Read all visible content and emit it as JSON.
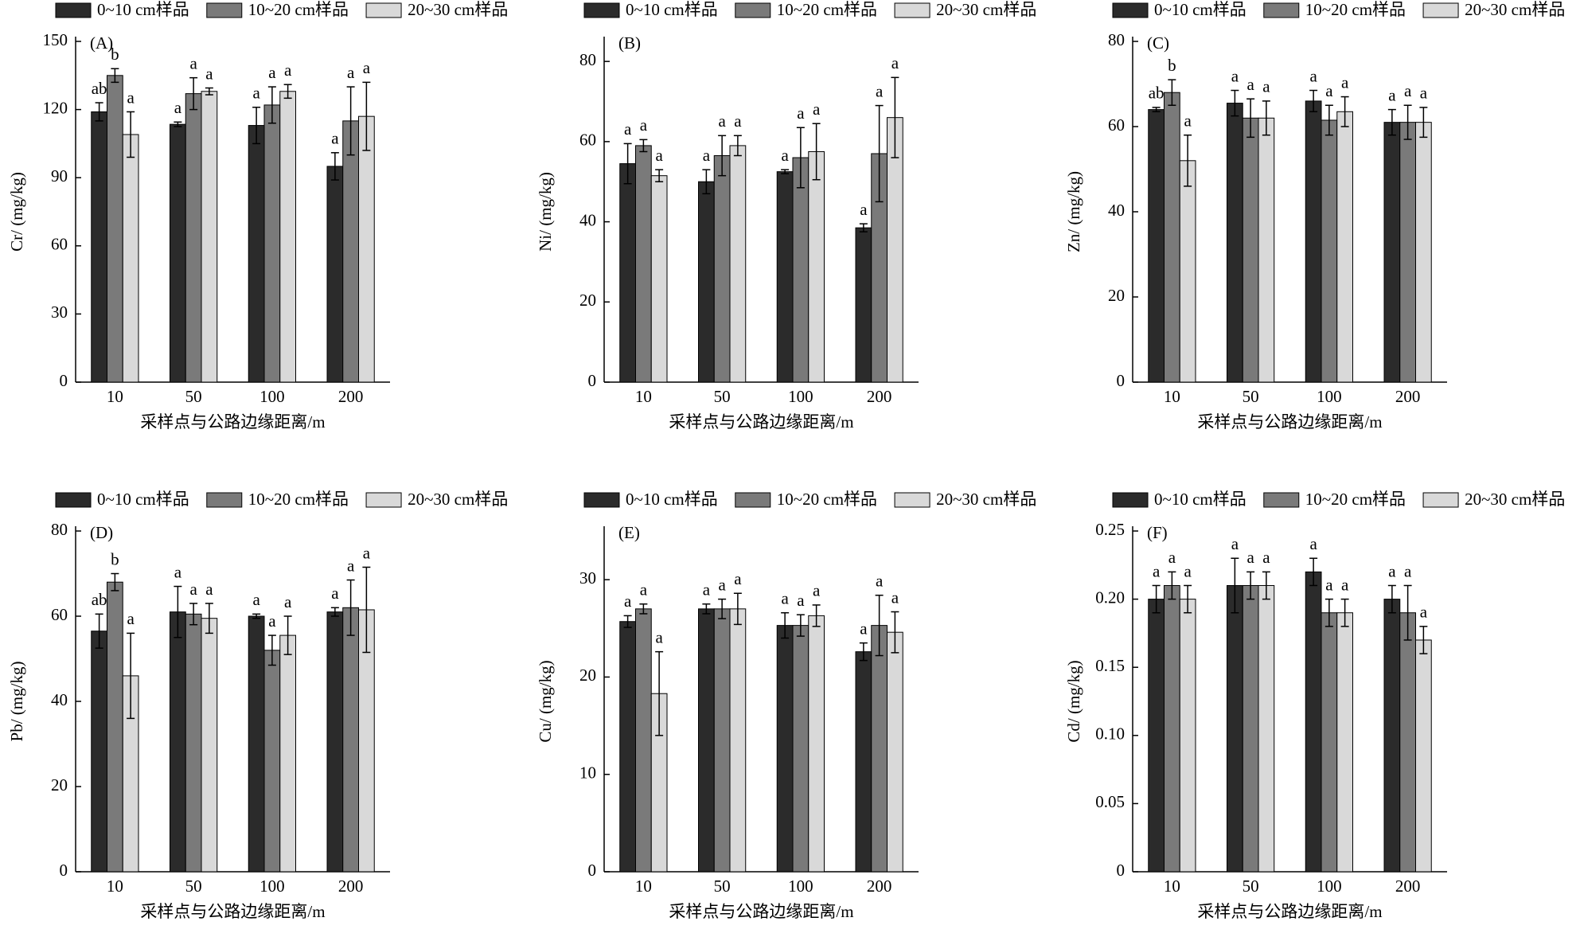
{
  "chart_data": [
    {
      "type": "bar",
      "panel": "(A)",
      "ylabel": "Cr/ (mg/kg)",
      "xlabel": "采样点与公路边缘距离/m",
      "categories": [
        "10",
        "50",
        "100",
        "200"
      ],
      "ylim": [
        0,
        150
      ],
      "yticks": [
        0,
        30,
        60,
        90,
        120,
        150
      ],
      "series": [
        {
          "name": "0~10 cm样品",
          "color": "#2b2b2b",
          "values": [
            119,
            113.5,
            113,
            95
          ],
          "errors": [
            4,
            1,
            8,
            6
          ],
          "letters": [
            "ab",
            "a",
            "a",
            "a"
          ]
        },
        {
          "name": "10~20 cm样品",
          "color": "#7a7a7a",
          "values": [
            135,
            127,
            122,
            115
          ],
          "errors": [
            3,
            7,
            8,
            15
          ],
          "letters": [
            "b",
            "a",
            "a",
            "a"
          ]
        },
        {
          "name": "20~30 cm样品",
          "color": "#d9d9d9",
          "values": [
            109,
            128,
            128,
            117
          ],
          "errors": [
            10,
            1.5,
            3,
            15
          ],
          "letters": [
            "a",
            "a",
            "a",
            "a"
          ]
        }
      ]
    },
    {
      "type": "bar",
      "panel": "(B)",
      "ylabel": "Ni/ (mg/kg)",
      "xlabel": "采样点与公路边缘距离/m",
      "categories": [
        "10",
        "50",
        "100",
        "200"
      ],
      "ylim": [
        0,
        85
      ],
      "yticks": [
        0,
        20,
        40,
        60,
        80
      ],
      "series": [
        {
          "name": "0~10 cm样品",
          "color": "#2b2b2b",
          "values": [
            54.5,
            50,
            52.5,
            38.5
          ],
          "errors": [
            5,
            3,
            0.5,
            1
          ],
          "letters": [
            "a",
            "a",
            "a",
            "a"
          ]
        },
        {
          "name": "10~20 cm样品",
          "color": "#7a7a7a",
          "values": [
            59,
            56.5,
            56,
            57
          ],
          "errors": [
            1.5,
            5,
            7.5,
            12
          ],
          "letters": [
            "a",
            "a",
            "a",
            "a"
          ]
        },
        {
          "name": "20~30 cm样品",
          "color": "#d9d9d9",
          "values": [
            51.5,
            59,
            57.5,
            66
          ],
          "errors": [
            1.5,
            2.5,
            7,
            10
          ],
          "letters": [
            "a",
            "a",
            "a",
            "a"
          ]
        }
      ]
    },
    {
      "type": "bar",
      "panel": "(C)",
      "ylabel": "Zn/ (mg/kg)",
      "xlabel": "采样点与公路边缘距离/m",
      "categories": [
        "10",
        "50",
        "100",
        "200"
      ],
      "ylim": [
        0,
        80
      ],
      "yticks": [
        0,
        20,
        40,
        60,
        80
      ],
      "series": [
        {
          "name": "0~10 cm样品",
          "color": "#2b2b2b",
          "values": [
            64,
            65.5,
            66,
            61
          ],
          "errors": [
            0.5,
            3,
            2.5,
            3
          ],
          "letters": [
            "ab",
            "a",
            "a",
            "a"
          ]
        },
        {
          "name": "10~20 cm样品",
          "color": "#7a7a7a",
          "values": [
            68,
            62,
            61.5,
            61
          ],
          "errors": [
            3,
            4.5,
            3.5,
            4
          ],
          "letters": [
            "b",
            "a",
            "a",
            "a"
          ]
        },
        {
          "name": "20~30 cm样品",
          "color": "#d9d9d9",
          "values": [
            52,
            62,
            63.5,
            61
          ],
          "errors": [
            6,
            4,
            3.5,
            3.5
          ],
          "letters": [
            "a",
            "a",
            "a",
            "a"
          ]
        }
      ]
    },
    {
      "type": "bar",
      "panel": "(D)",
      "ylabel": "Pb/ (mg/kg)",
      "xlabel": "采样点与公路边缘距离/m",
      "categories": [
        "10",
        "50",
        "100",
        "200"
      ],
      "ylim": [
        0,
        80
      ],
      "yticks": [
        0,
        20,
        40,
        60,
        80
      ],
      "series": [
        {
          "name": "0~10 cm样品",
          "color": "#2b2b2b",
          "values": [
            56.5,
            61,
            60,
            61
          ],
          "errors": [
            4,
            6,
            0.5,
            1
          ],
          "letters": [
            "ab",
            "a",
            "a",
            "a"
          ]
        },
        {
          "name": "10~20 cm样品",
          "color": "#7a7a7a",
          "values": [
            68,
            60.5,
            52,
            62
          ],
          "errors": [
            2,
            2.5,
            3.5,
            6.5
          ],
          "letters": [
            "b",
            "a",
            "a",
            "a"
          ]
        },
        {
          "name": "20~30 cm样品",
          "color": "#d9d9d9",
          "values": [
            46,
            59.5,
            55.5,
            61.5
          ],
          "errors": [
            10,
            3.5,
            4.5,
            10
          ],
          "letters": [
            "a",
            "a",
            "a",
            "a"
          ]
        }
      ]
    },
    {
      "type": "bar",
      "panel": "(E)",
      "ylabel": "Cu/ (mg/kg)",
      "xlabel": "采样点与公路边缘距离/m",
      "categories": [
        "10",
        "50",
        "100",
        "200"
      ],
      "ylim": [
        0,
        35
      ],
      "yticks": [
        0,
        10,
        20,
        30
      ],
      "series": [
        {
          "name": "0~10 cm样品",
          "color": "#2b2b2b",
          "values": [
            25.7,
            27,
            25.3,
            22.6
          ],
          "errors": [
            0.6,
            0.5,
            1.3,
            0.9
          ],
          "letters": [
            "a",
            "a",
            "a",
            "a"
          ]
        },
        {
          "name": "10~20 cm样品",
          "color": "#7a7a7a",
          "values": [
            27,
            27,
            25.3,
            25.3
          ],
          "errors": [
            0.5,
            1,
            1.1,
            3.1
          ],
          "letters": [
            "a",
            "a",
            "a",
            "a"
          ]
        },
        {
          "name": "20~30 cm样品",
          "color": "#d9d9d9",
          "values": [
            18.3,
            27,
            26.3,
            24.6
          ],
          "errors": [
            4.3,
            1.6,
            1.1,
            2.1
          ],
          "letters": [
            "a",
            "a",
            "a",
            "a"
          ]
        }
      ]
    },
    {
      "type": "bar",
      "panel": "(F)",
      "ylabel": "Cd/ (mg/kg)",
      "xlabel": "采样点与公路边缘距离/m",
      "categories": [
        "10",
        "50",
        "100",
        "200"
      ],
      "ylim": [
        0,
        0.25
      ],
      "yticks": [
        0,
        0.05,
        {
          "value": 0.1,
          "label": "0.10"
        },
        0.15,
        {
          "value": 0.2,
          "label": "0.20"
        },
        0.25
      ],
      "series": [
        {
          "name": "0~10 cm样品",
          "color": "#2b2b2b",
          "values": [
            0.2,
            0.21,
            0.22,
            0.2
          ],
          "errors": [
            0.01,
            0.02,
            0.01,
            0.01
          ],
          "letters": [
            "a",
            "a",
            "a",
            "a"
          ]
        },
        {
          "name": "10~20 cm样品",
          "color": "#7a7a7a",
          "values": [
            0.21,
            0.21,
            0.19,
            0.19
          ],
          "errors": [
            0.01,
            0.01,
            0.01,
            0.02
          ],
          "letters": [
            "a",
            "a",
            "a",
            "a"
          ]
        },
        {
          "name": "20~30 cm样品",
          "color": "#d9d9d9",
          "values": [
            0.2,
            0.21,
            0.19,
            0.17
          ],
          "errors": [
            0.01,
            0.01,
            0.01,
            0.01
          ],
          "letters": [
            "a",
            "a",
            "a",
            "a"
          ]
        }
      ]
    }
  ]
}
